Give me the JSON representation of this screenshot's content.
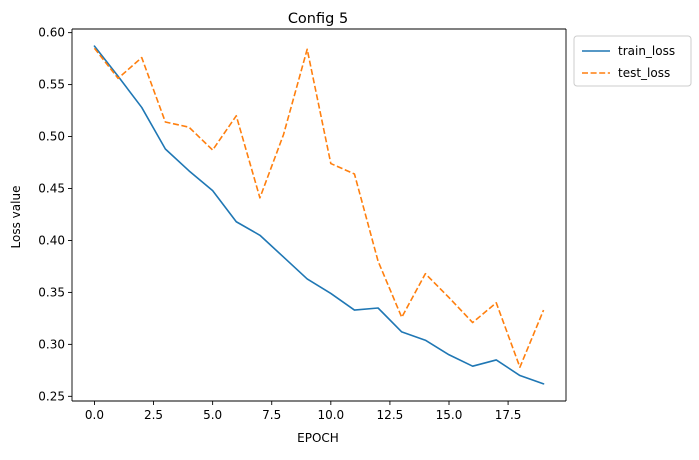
{
  "chart_data": {
    "type": "line",
    "title": "Config 5",
    "xlabel": "EPOCH",
    "ylabel": "Loss value",
    "x": [
      0,
      1,
      2,
      3,
      4,
      5,
      6,
      7,
      8,
      9,
      10,
      11,
      12,
      13,
      14,
      15,
      16,
      17,
      18,
      19
    ],
    "series": [
      {
        "name": "train_loss",
        "color": "#1f77b4",
        "style": "solid",
        "values": [
          0.587,
          0.558,
          0.528,
          0.488,
          0.467,
          0.448,
          0.418,
          0.405,
          0.384,
          0.363,
          0.349,
          0.333,
          0.335,
          0.312,
          0.304,
          0.29,
          0.279,
          0.285,
          0.27,
          0.262
        ]
      },
      {
        "name": "test_loss",
        "color": "#ff7f0e",
        "style": "dashed",
        "values": [
          0.585,
          0.556,
          0.576,
          0.514,
          0.509,
          0.487,
          0.52,
          0.441,
          0.502,
          0.584,
          0.474,
          0.464,
          0.38,
          0.326,
          0.368,
          0.345,
          0.321,
          0.34,
          0.278,
          0.333
        ]
      }
    ],
    "xlim": [
      -0.95,
      19.95
    ],
    "ylim": [
      0.2455,
      0.6035
    ],
    "xticks": [
      0.0,
      2.5,
      5.0,
      7.5,
      10.0,
      12.5,
      15.0,
      17.5
    ],
    "xtick_labels": [
      "0.0",
      "2.5",
      "5.0",
      "7.5",
      "10.0",
      "12.5",
      "15.0",
      "17.5"
    ],
    "yticks": [
      0.25,
      0.3,
      0.35,
      0.4,
      0.45,
      0.5,
      0.55,
      0.6
    ],
    "ytick_labels": [
      "0.25",
      "0.30",
      "0.35",
      "0.40",
      "0.45",
      "0.50",
      "0.55",
      "0.60"
    ],
    "grid": false,
    "legend_position": "outside-top-right"
  }
}
